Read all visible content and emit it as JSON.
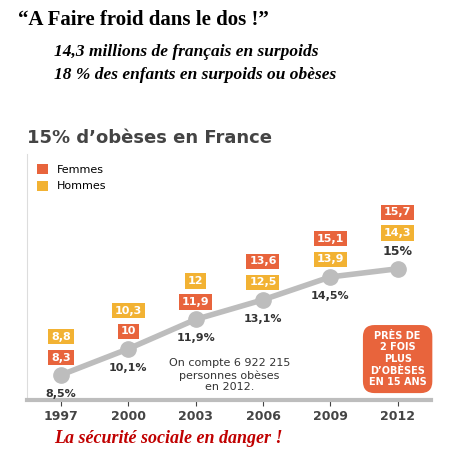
{
  "header": {
    "title": "“A Faire froid dans le dos !”",
    "subtitle": [
      "14,3 millions de français en surpoids",
      "18 % des enfants en surpoids ou obèses"
    ]
  },
  "footer": "La sécurité sociale en danger !",
  "chart_data": {
    "type": "line",
    "title": "15% d’obèses en France",
    "categories": [
      "1997",
      "2000",
      "2003",
      "2006",
      "2009",
      "2012"
    ],
    "values": [
      8.5,
      10.1,
      11.9,
      13.1,
      14.5,
      15
    ],
    "value_labels": [
      "8,5%",
      "10,1%",
      "11,9%",
      "13,1%",
      "14,5%",
      "15%"
    ],
    "color": "#bdbdbd",
    "marker": "o",
    "ylim": [
      7,
      22
    ],
    "yticks": [],
    "tick_labels": "x",
    "legend": "upper left",
    "series": [
      {
        "name": "Femmes",
        "type": "label",
        "color": "#e8643c",
        "values": [
          8.3,
          10,
          11.9,
          13.6,
          15.1,
          15.7
        ],
        "value_labels": [
          "8,3",
          "10",
          "11,9",
          "13,6",
          "15,1",
          "15,7"
        ]
      },
      {
        "name": "Hommes",
        "type": "label",
        "color": "#f2b233",
        "values": [
          8.8,
          10.3,
          12,
          12.5,
          13.9,
          14.3
        ],
        "value_labels": [
          "8,8",
          "10,3",
          "12",
          "12,5",
          "13,9",
          "14,3"
        ]
      }
    ],
    "annotations": [
      "On compte 6 922 215\npersonnes obèses\nen 2012.",
      "PRÈS DE\n2 FOIS\nPLUS\nD’OBÈSES\nEN 15 ANS"
    ]
  }
}
